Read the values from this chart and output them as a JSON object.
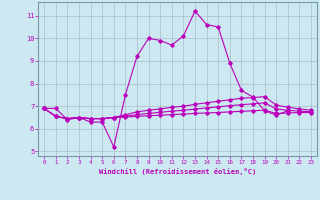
{
  "xlabel": "Windchill (Refroidissement éolien,°C)",
  "bg_color": "#cce8f0",
  "grid_color": "#aabbcc",
  "line_color": "#bb00bb",
  "xlim": [
    -0.5,
    23.5
  ],
  "ylim": [
    4.8,
    11.6
  ],
  "xticks": [
    0,
    1,
    2,
    3,
    4,
    5,
    6,
    7,
    8,
    9,
    10,
    11,
    12,
    13,
    14,
    15,
    16,
    17,
    18,
    19,
    20,
    21,
    22,
    23
  ],
  "yticks": [
    5,
    6,
    7,
    8,
    9,
    10,
    11
  ],
  "series1_x": [
    0,
    1,
    2,
    3,
    4,
    5,
    6,
    7,
    8,
    9,
    10,
    11,
    12,
    13,
    14,
    15,
    16,
    17,
    18,
    19,
    20,
    21
  ],
  "series1_y": [
    6.9,
    6.9,
    6.4,
    6.5,
    6.3,
    6.3,
    5.2,
    7.5,
    9.2,
    10.0,
    9.9,
    9.7,
    10.1,
    11.2,
    10.6,
    10.5,
    8.9,
    7.7,
    7.4,
    6.8,
    6.6,
    6.8
  ],
  "series2_x": [
    0,
    1,
    2,
    3,
    4,
    5,
    6,
    7,
    8,
    9,
    10,
    11,
    12,
    13,
    14,
    15,
    16,
    17,
    18,
    19,
    20,
    21,
    22,
    23
  ],
  "series2_y": [
    6.9,
    6.55,
    6.45,
    6.5,
    6.45,
    6.45,
    6.5,
    6.52,
    6.55,
    6.58,
    6.6,
    6.63,
    6.65,
    6.68,
    6.7,
    6.72,
    6.75,
    6.77,
    6.8,
    6.82,
    6.68,
    6.7,
    6.72,
    6.72
  ],
  "series3_x": [
    0,
    1,
    2,
    3,
    4,
    5,
    6,
    7,
    8,
    9,
    10,
    11,
    12,
    13,
    14,
    15,
    16,
    17,
    18,
    19,
    20,
    21,
    22,
    23
  ],
  "series3_y": [
    6.9,
    6.55,
    6.45,
    6.5,
    6.45,
    6.45,
    6.5,
    6.56,
    6.63,
    6.68,
    6.73,
    6.78,
    6.82,
    6.87,
    6.92,
    6.97,
    7.02,
    7.07,
    7.1,
    7.15,
    6.88,
    6.82,
    6.78,
    6.75
  ],
  "series4_x": [
    0,
    1,
    2,
    3,
    4,
    5,
    6,
    7,
    8,
    9,
    10,
    11,
    12,
    13,
    14,
    15,
    16,
    17,
    18,
    19,
    20,
    21,
    22,
    23
  ],
  "series4_y": [
    6.9,
    6.55,
    6.45,
    6.5,
    6.45,
    6.45,
    6.5,
    6.62,
    6.75,
    6.82,
    6.88,
    6.95,
    7.0,
    7.08,
    7.15,
    7.22,
    7.28,
    7.35,
    7.38,
    7.42,
    7.05,
    6.95,
    6.88,
    6.82
  ]
}
